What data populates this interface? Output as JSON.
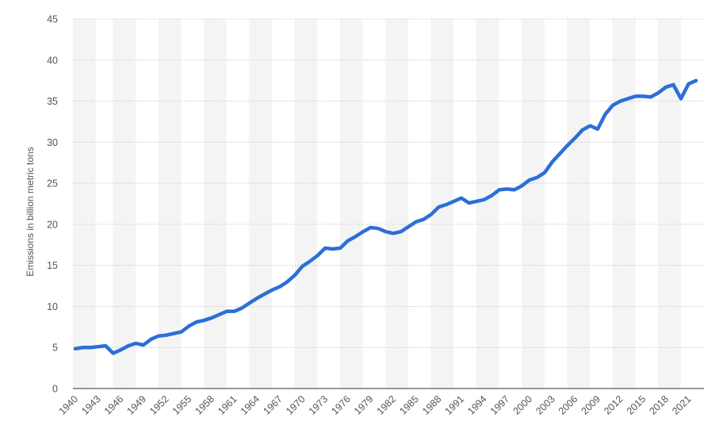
{
  "chart_data": {
    "type": "line",
    "ylabel": "Emissions in billion metric tons",
    "xlabel": "",
    "ylim": [
      0,
      45
    ],
    "yticks": [
      0,
      5,
      10,
      15,
      20,
      25,
      30,
      35,
      40,
      45
    ],
    "xlim": [
      1940,
      2022
    ],
    "xtick_labels": [
      "1940",
      "1943",
      "1946",
      "1949",
      "1952",
      "1955",
      "1958",
      "1961",
      "1964",
      "1967",
      "1970",
      "1973",
      "1976",
      "1979",
      "1982",
      "1985",
      "1988",
      "1991",
      "1994",
      "1997",
      "2000",
      "2003",
      "2006",
      "2009",
      "2012",
      "2015",
      "2018",
      "2021"
    ],
    "grid": true,
    "line_color": "#2b6fd6",
    "band_color": "#f4f4f4",
    "grid_color": "#c8c8c8",
    "x": [
      1940,
      1941,
      1942,
      1943,
      1944,
      1945,
      1946,
      1947,
      1948,
      1949,
      1950,
      1951,
      1952,
      1953,
      1954,
      1955,
      1956,
      1957,
      1958,
      1959,
      1960,
      1961,
      1962,
      1963,
      1964,
      1965,
      1966,
      1967,
      1968,
      1969,
      1970,
      1971,
      1972,
      1973,
      1974,
      1975,
      1976,
      1977,
      1978,
      1979,
      1980,
      1981,
      1982,
      1983,
      1984,
      1985,
      1986,
      1987,
      1988,
      1989,
      1990,
      1991,
      1992,
      1993,
      1994,
      1995,
      1996,
      1997,
      1998,
      1999,
      2000,
      2001,
      2002,
      2003,
      2004,
      2005,
      2006,
      2007,
      2008,
      2009,
      2010,
      2011,
      2012,
      2013,
      2014,
      2015,
      2016,
      2017,
      2018,
      2019,
      2020,
      2021,
      2022
    ],
    "values": [
      4.85,
      5.0,
      5.0,
      5.1,
      5.2,
      4.3,
      4.7,
      5.2,
      5.5,
      5.3,
      6.0,
      6.4,
      6.5,
      6.7,
      6.9,
      7.6,
      8.1,
      8.3,
      8.6,
      9.0,
      9.4,
      9.4,
      9.8,
      10.4,
      11.0,
      11.5,
      12.0,
      12.4,
      13.0,
      13.8,
      14.9,
      15.5,
      16.2,
      17.1,
      17.0,
      17.1,
      18.0,
      18.5,
      19.1,
      19.6,
      19.5,
      19.1,
      18.9,
      19.1,
      19.7,
      20.3,
      20.6,
      21.2,
      22.1,
      22.4,
      22.8,
      23.2,
      22.6,
      22.8,
      23.0,
      23.5,
      24.2,
      24.3,
      24.2,
      24.7,
      25.4,
      25.7,
      26.3,
      27.6,
      28.6,
      29.6,
      30.5,
      31.5,
      32.0,
      31.6,
      33.4,
      34.5,
      35.0,
      35.3,
      35.6,
      35.6,
      35.5,
      36.0,
      36.7,
      37.0,
      35.3,
      37.1,
      37.5
    ]
  }
}
